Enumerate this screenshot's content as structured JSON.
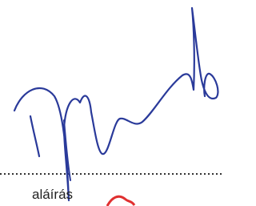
{
  "signature_block": {
    "label": "aláírás"
  }
}
